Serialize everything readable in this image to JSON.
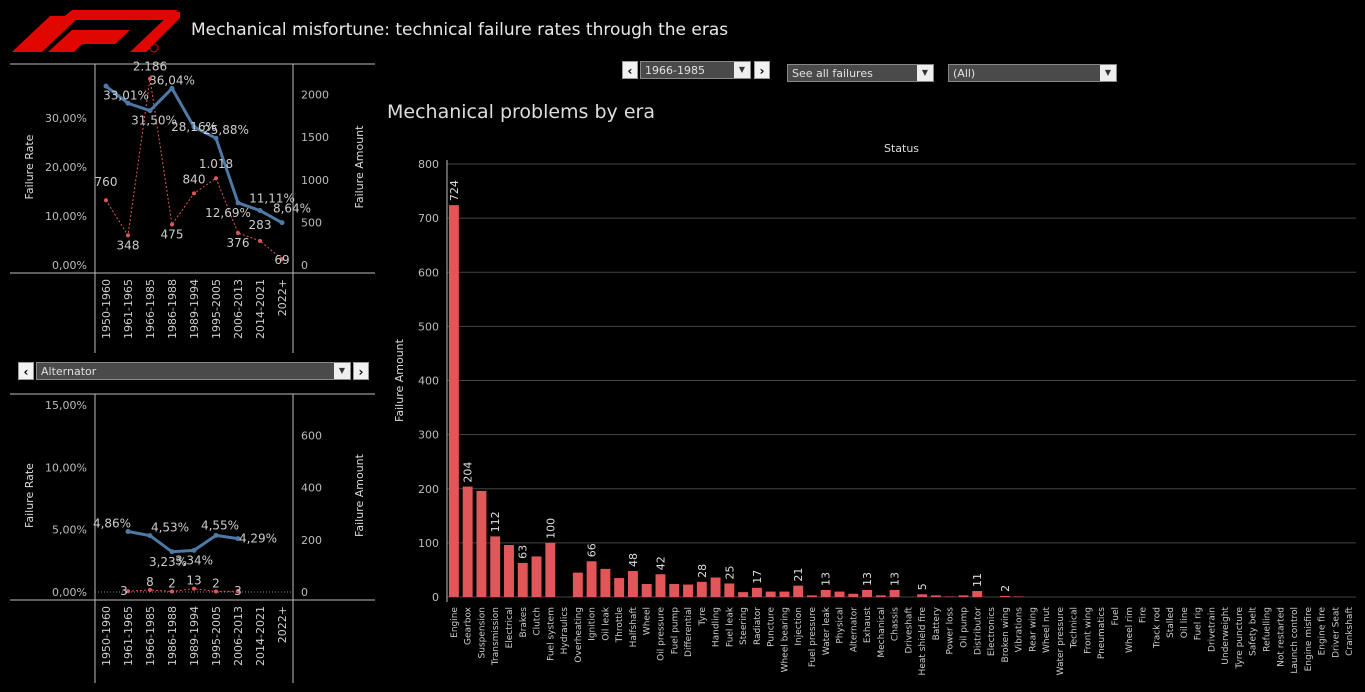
{
  "header": {
    "title": "Mechanical misfortune: technical failure rates through the eras",
    "logo_icon": "f1-logo-icon",
    "brand_color": "#e10600"
  },
  "controls": {
    "era_select": "1966-1985",
    "failure_select": "See all failures",
    "filter_select": "(All)",
    "component_select": "Alternator",
    "prev_icon": "chevron-left-icon",
    "next_icon": "chevron-right-icon",
    "dropdown_icon": "caret-down-icon"
  },
  "chart_data": [
    {
      "type": "line",
      "name": "overall-failure-trend",
      "categories": [
        "1950-1960",
        "1961-1965",
        "1966-1985",
        "1986-1988",
        "1989-1994",
        "1995-2005",
        "2006-2013",
        "2014-2021",
        "2022+"
      ],
      "series": [
        {
          "axis": "left",
          "color": "#4e79a7",
          "values": [
            36.5,
            33.01,
            31.5,
            36.04,
            28.16,
            25.88,
            12.69,
            11.11,
            8.64
          ],
          "labels": [
            "",
            "33,01%",
            "31,50%",
            "36,04%",
            "28,16%",
            "25,88%",
            "12,69%",
            "11,11%",
            "8,64%"
          ]
        },
        {
          "axis": "right",
          "color": "#e15759",
          "values": [
            760,
            348,
            2186,
            475,
            840,
            1018,
            376,
            283,
            69
          ],
          "labels": [
            "760",
            "348",
            "2.186",
            "475",
            "840",
            "1.018",
            "376",
            "283",
            "69"
          ]
        }
      ],
      "ylabel_left": "Failure Rate",
      "ylabel_right": "Failure Amount",
      "yticks_left": [
        "0,00%",
        "10,00%",
        "20,00%",
        "30,00%"
      ],
      "yticks_right": [
        "0",
        "500",
        "1000",
        "1500",
        "2000"
      ],
      "ylim_left": [
        0,
        40
      ],
      "ylim_right": [
        0,
        2300
      ]
    },
    {
      "type": "line",
      "name": "component-failure-trend",
      "categories": [
        "1950-1960",
        "1961-1965",
        "1966-1985",
        "1986-1988",
        "1989-1994",
        "1995-2005",
        "2006-2013",
        "2014-2021",
        "2022+"
      ],
      "series": [
        {
          "axis": "left",
          "color": "#4e79a7",
          "values": [
            null,
            4.86,
            4.53,
            3.23,
            3.34,
            4.55,
            4.29,
            null,
            null
          ],
          "labels": [
            "",
            "4,86%",
            "4,53%",
            "3,23%",
            "3,34%",
            "4,55%",
            "4,29%",
            "",
            ""
          ]
        },
        {
          "axis": "right",
          "color": "#e15759",
          "values": [
            null,
            3,
            8,
            2,
            13,
            2,
            3,
            null,
            null
          ],
          "labels": [
            "",
            "3",
            "8",
            "2",
            "13",
            "2",
            "3",
            "",
            ""
          ]
        }
      ],
      "ylabel_left": "Failure Rate",
      "ylabel_right": "Failure Amount",
      "yticks_left": [
        "0,00%",
        "5,00%",
        "10,00%",
        "15,00%"
      ],
      "yticks_right": [
        "0",
        "200",
        "400",
        "600"
      ],
      "ylim_left": [
        0,
        15.5
      ],
      "ylim_right": [
        0,
        740
      ]
    },
    {
      "type": "bar",
      "name": "mechanical-problems-by-era",
      "title": "Mechanical problems by era",
      "column_header": "Status",
      "ylabel": "Failure Amount",
      "yticks": [
        "0",
        "100",
        "200",
        "300",
        "400",
        "500",
        "600",
        "700",
        "800"
      ],
      "ylim": [
        0,
        800
      ],
      "color": "#e15759",
      "categories": [
        "Engine",
        "Gearbox",
        "Suspension",
        "Transmission",
        "Electrical",
        "Brakes",
        "Clutch",
        "Fuel system",
        "Hydraulics",
        "Overheating",
        "Ignition",
        "Oil leak",
        "Throttle",
        "Halfshaft",
        "Wheel",
        "Oil pressure",
        "Fuel pump",
        "Differential",
        "Tyre",
        "Handling",
        "Fuel leak",
        "Steering",
        "Radiator",
        "Puncture",
        "Wheel bearing",
        "Injection",
        "Fuel pressure",
        "Water leak",
        "Physical",
        "Alternator",
        "Exhaust",
        "Mechanical",
        "Chassis",
        "Driveshaft",
        "Heat shield fire",
        "Battery",
        "Power loss",
        "Oil pump",
        "Distributor",
        "Electronics",
        "Broken wing",
        "Vibrations",
        "Rear wing",
        "Wheel nut",
        "Water pressure",
        "Technical",
        "Front wing",
        "Pneumatics",
        "Fuel",
        "Wheel rim",
        "Fire",
        "Track rod",
        "Stalled",
        "Oil line",
        "Fuel rig",
        "Drivetrain",
        "Underweight",
        "Tyre puncture",
        "Safety belt",
        "Refuelling",
        "Not restarted",
        "Launch control",
        "Engine misfire",
        "Engine fire",
        "Driver Seat",
        "Crankshaft"
      ],
      "values": [
        724,
        204,
        196,
        112,
        96,
        63,
        75,
        100,
        0,
        45,
        66,
        52,
        35,
        48,
        24,
        42,
        24,
        23,
        28,
        36,
        25,
        9,
        17,
        10,
        10,
        21,
        3,
        13,
        10,
        6,
        13,
        3,
        13,
        0,
        5,
        3,
        1,
        3,
        11,
        0,
        2,
        1,
        0,
        0,
        0,
        0,
        0,
        0,
        0,
        0,
        0,
        0,
        0,
        0,
        0,
        0,
        0,
        0,
        0,
        0,
        0,
        0,
        0,
        0,
        0,
        0
      ],
      "labels": [
        "724",
        "204",
        "",
        "112",
        "",
        "63",
        "",
        "100",
        "",
        "",
        "66",
        "",
        "",
        "48",
        "",
        "42",
        "",
        "",
        "28",
        "",
        "25",
        "",
        "17",
        "",
        "",
        "21",
        "",
        "13",
        "",
        "",
        "13",
        "",
        "13",
        "",
        "5",
        "",
        "",
        "",
        "11",
        "",
        "2",
        "",
        "",
        "",
        "",
        "",
        "",
        "",
        "",
        "",
        "",
        "",
        "",
        "",
        "",
        "",
        "",
        "",
        "",
        "",
        "",
        "",
        "",
        "",
        "",
        ""
      ]
    }
  ]
}
